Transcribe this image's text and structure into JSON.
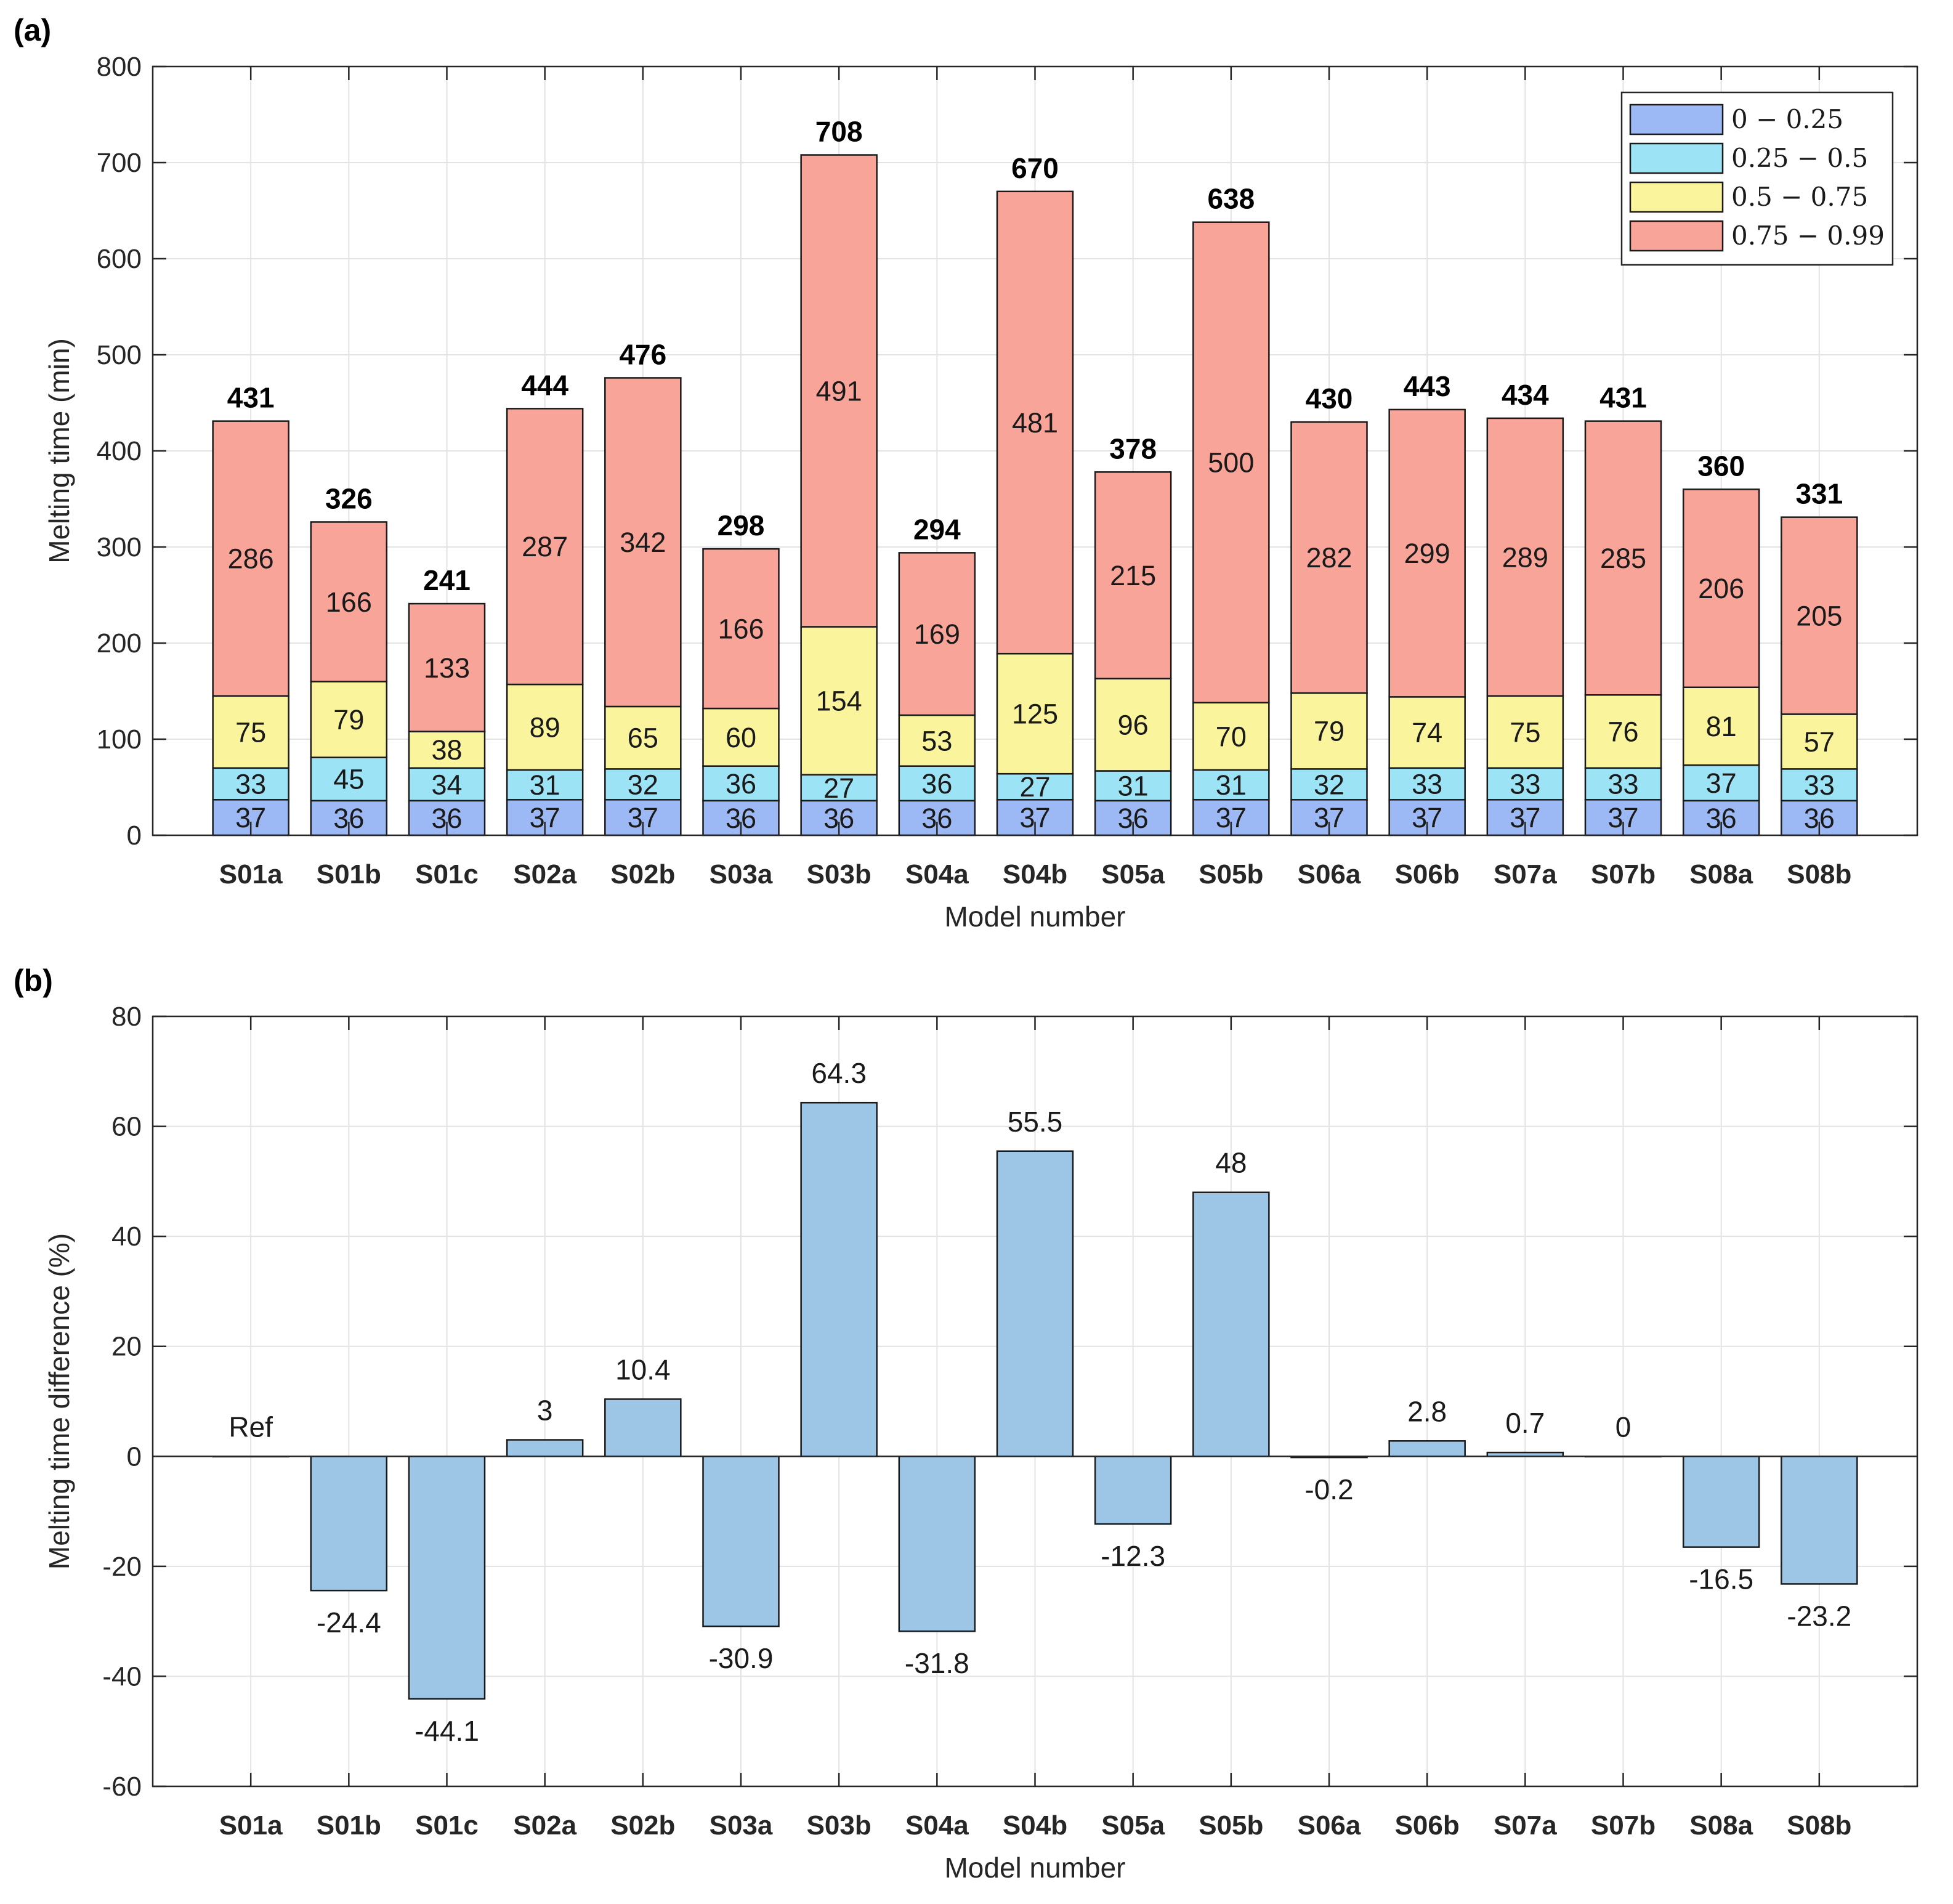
{
  "chart_data": [
    {
      "panel": "(a)",
      "type": "bar",
      "stacked": true,
      "xlabel": "Model number",
      "ylabel": "Melting time (min)",
      "ylim": [
        0,
        800
      ],
      "yticks": [
        "0",
        "100",
        "200",
        "300",
        "400",
        "500",
        "600",
        "700",
        "800"
      ],
      "grid": true,
      "legend_position": "top-right",
      "categories": [
        "S01a",
        "S01b",
        "S01c",
        "S02a",
        "S02b",
        "S03a",
        "S03b",
        "S04a",
        "S04b",
        "S05a",
        "S05b",
        "S06a",
        "S06b",
        "S07a",
        "S07b",
        "S08a",
        "S08b"
      ],
      "series": [
        {
          "name": "0 − 0.25",
          "color": "#9DB9F5",
          "values": [
            37,
            36,
            36,
            37,
            37,
            36,
            36,
            36,
            37,
            36,
            37,
            37,
            37,
            37,
            37,
            36,
            36
          ]
        },
        {
          "name": "0.25 − 0.5",
          "color": "#9BE3F5",
          "values": [
            33,
            45,
            34,
            31,
            32,
            36,
            27,
            36,
            27,
            31,
            31,
            32,
            33,
            33,
            33,
            37,
            33
          ]
        },
        {
          "name": "0.5 − 0.75",
          "color": "#FAF49C",
          "values": [
            75,
            79,
            38,
            89,
            65,
            60,
            154,
            53,
            125,
            96,
            70,
            79,
            74,
            75,
            76,
            81,
            57
          ]
        },
        {
          "name": "0.75 − 0.99",
          "color": "#F8A499",
          "values": [
            286,
            166,
            133,
            287,
            342,
            166,
            491,
            169,
            481,
            215,
            500,
            282,
            299,
            289,
            285,
            206,
            205
          ]
        }
      ],
      "totals": [
        431,
        326,
        241,
        444,
        476,
        298,
        708,
        294,
        670,
        378,
        638,
        430,
        443,
        434,
        431,
        360,
        331
      ]
    },
    {
      "panel": "(b)",
      "type": "bar",
      "xlabel": "Model number",
      "ylabel": "Melting time difference (%)",
      "ylim": [
        -60,
        80
      ],
      "yticks": [
        "-60",
        "-40",
        "-20",
        "0",
        "20",
        "40",
        "60",
        "80"
      ],
      "grid": true,
      "bar_color": "#9DC6E6",
      "categories": [
        "S01a",
        "S01b",
        "S01c",
        "S02a",
        "S02b",
        "S03a",
        "S03b",
        "S04a",
        "S04b",
        "S05a",
        "S05b",
        "S06a",
        "S06b",
        "S07a",
        "S07b",
        "S08a",
        "S08b"
      ],
      "values": [
        0,
        -24.4,
        -44.1,
        3,
        10.4,
        -30.9,
        64.3,
        -31.8,
        55.5,
        -12.3,
        48,
        -0.2,
        2.8,
        0.7,
        0,
        -16.5,
        -23.2
      ],
      "labels": [
        "Ref",
        "-24.4",
        "-44.1",
        "3",
        "10.4",
        "-30.9",
        "64.3",
        "-31.8",
        "55.5",
        "-12.3",
        "48",
        "-0.2",
        "2.8",
        "0.7",
        "0",
        "-16.5",
        "-23.2"
      ]
    }
  ]
}
